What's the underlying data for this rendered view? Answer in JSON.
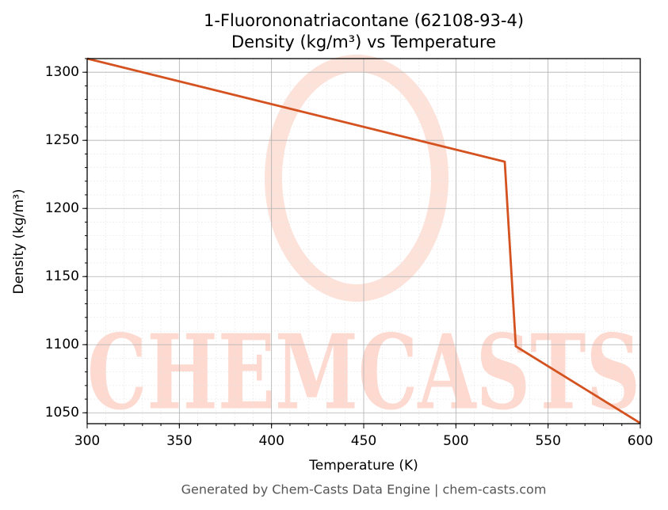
{
  "chart_data": {
    "type": "line",
    "title": "1-Fluorononatriacontane (62108-93-4)",
    "subtitle": "Density (kg/m³) vs Temperature",
    "x_label": "Temperature (K)",
    "y_label": "Density (kg/m³)",
    "x": [
      300,
      526.5,
      532.5,
      600
    ],
    "series": [
      {
        "name": "Density",
        "color": "#d4521f",
        "values": [
          1310,
          1234.3,
          1098.8,
          1042.4
        ]
      }
    ],
    "xlim": [
      300,
      600
    ],
    "xticks": [
      300,
      350,
      400,
      450,
      500,
      550,
      600
    ],
    "ylim": [
      1042,
      1310
    ],
    "yticks": [
      1050,
      1100,
      1150,
      1200,
      1250,
      1300
    ],
    "grid": true,
    "watermark": "CHEMCASTS",
    "footer": "Generated by Chem-Casts Data Engine | chem-casts.com"
  }
}
